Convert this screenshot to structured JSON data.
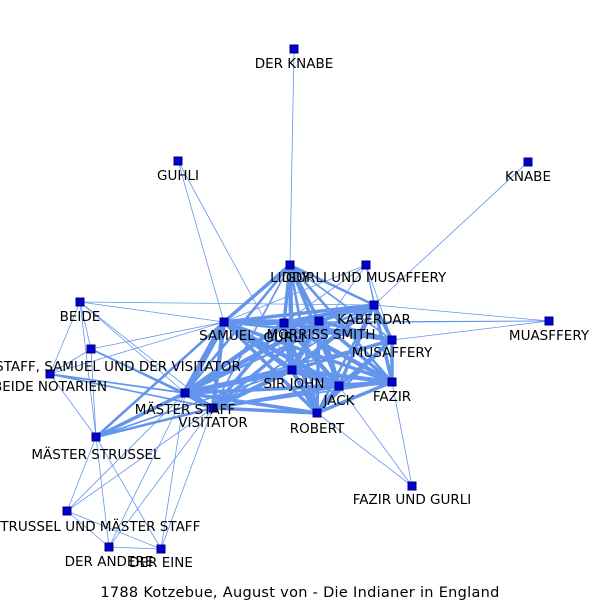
{
  "caption": "1788 Kotzebue, August von - Die Indianer in England",
  "colors": {
    "edge": "#6495ed",
    "node": "#0000cd",
    "node_border": "#000080",
    "text": "#000000"
  },
  "nodes": [
    {
      "id": "der_knabe",
      "label": "DER KNABE"
    },
    {
      "id": "guhli",
      "label": "GUHLI"
    },
    {
      "id": "knabe",
      "label": "KNABE"
    },
    {
      "id": "liddy",
      "label": "LIDDY"
    },
    {
      "id": "gurli_und_musaffery",
      "label": "GURLI UND MUSAFFERY"
    },
    {
      "id": "kaberdar",
      "label": "KABERDAR"
    },
    {
      "id": "muasffery",
      "label": "MUASFFERY"
    },
    {
      "id": "beide",
      "label": "BEIDE"
    },
    {
      "id": "samuel",
      "label": "SAMUEL"
    },
    {
      "id": "gurli",
      "label": "GURLI"
    },
    {
      "id": "morriss_smith",
      "label": "MORRISS SMITH"
    },
    {
      "id": "musaffery",
      "label": "MUSAFFERY"
    },
    {
      "id": "staff_samuel_visitator",
      "label": "STAFF, SAMUEL UND DER VISITATOR"
    },
    {
      "id": "beide_notarien",
      "label": "BEIDE NOTARIEN"
    },
    {
      "id": "sir_john",
      "label": "SIR JOHN"
    },
    {
      "id": "jack",
      "label": "JACK"
    },
    {
      "id": "fazir",
      "label": "FAZIR"
    },
    {
      "id": "maester_staff",
      "label": "MÄSTER STAFF"
    },
    {
      "id": "visitator",
      "label": "VISITATOR"
    },
    {
      "id": "robert",
      "label": "ROBERT"
    },
    {
      "id": "maester_strussel",
      "label": "MÄSTER STRUSSEL"
    },
    {
      "id": "fazir_und_gurli",
      "label": "FAZIR UND GURLI"
    },
    {
      "id": "strussel_und_staff",
      "label": "STRUSSEL UND MÄSTER STAFF"
    },
    {
      "id": "der_andere",
      "label": "DER ANDERE"
    },
    {
      "id": "der_eine",
      "label": "DER EINE"
    }
  ],
  "edges": [
    {
      "source": "der_knabe",
      "target": "liddy",
      "weight": 1
    },
    {
      "source": "knabe",
      "target": "kaberdar",
      "weight": 1
    },
    {
      "source": "guhli",
      "target": "samuel",
      "weight": 1
    },
    {
      "source": "guhli",
      "target": "sir_john",
      "weight": 1
    },
    {
      "source": "liddy",
      "target": "gurli",
      "weight": 4
    },
    {
      "source": "liddy",
      "target": "samuel",
      "weight": 4
    },
    {
      "source": "liddy",
      "target": "morriss_smith",
      "weight": 4
    },
    {
      "source": "liddy",
      "target": "sir_john",
      "weight": 5
    },
    {
      "source": "liddy",
      "target": "jack",
      "weight": 4
    },
    {
      "source": "liddy",
      "target": "robert",
      "weight": 3
    },
    {
      "source": "liddy",
      "target": "maester_staff",
      "weight": 3
    },
    {
      "source": "liddy",
      "target": "kaberdar",
      "weight": 3
    },
    {
      "source": "liddy",
      "target": "musaffery",
      "weight": 2
    },
    {
      "source": "liddy",
      "target": "fazir",
      "weight": 3
    },
    {
      "source": "liddy",
      "target": "visitator",
      "weight": 2
    },
    {
      "source": "gurli_und_musaffery",
      "target": "gurli",
      "weight": 1
    },
    {
      "source": "gurli_und_musaffery",
      "target": "kaberdar",
      "weight": 1
    },
    {
      "source": "gurli_und_musaffery",
      "target": "sir_john",
      "weight": 1
    },
    {
      "source": "gurli_und_musaffery",
      "target": "musaffery",
      "weight": 1
    },
    {
      "source": "gurli_und_musaffery",
      "target": "fazir",
      "weight": 1
    },
    {
      "source": "gurli_und_musaffery",
      "target": "samuel",
      "weight": 1
    },
    {
      "source": "kaberdar",
      "target": "gurli",
      "weight": 5
    },
    {
      "source": "kaberdar",
      "target": "samuel",
      "weight": 4
    },
    {
      "source": "kaberdar",
      "target": "morriss_smith",
      "weight": 4
    },
    {
      "source": "kaberdar",
      "target": "sir_john",
      "weight": 5
    },
    {
      "source": "kaberdar",
      "target": "jack",
      "weight": 4
    },
    {
      "source": "kaberdar",
      "target": "fazir",
      "weight": 4
    },
    {
      "source": "kaberdar",
      "target": "musaffery",
      "weight": 4
    },
    {
      "source": "kaberdar",
      "target": "robert",
      "weight": 3
    },
    {
      "source": "kaberdar",
      "target": "maester_staff",
      "weight": 3
    },
    {
      "source": "kaberdar",
      "target": "visitator",
      "weight": 2
    },
    {
      "source": "kaberdar",
      "target": "muasffery",
      "weight": 1
    },
    {
      "source": "muasffery",
      "target": "gurli",
      "weight": 1
    },
    {
      "source": "muasffery",
      "target": "musaffery",
      "weight": 1
    },
    {
      "source": "muasffery",
      "target": "samuel",
      "weight": 1
    },
    {
      "source": "beide",
      "target": "samuel",
      "weight": 1
    },
    {
      "source": "beide",
      "target": "maester_staff",
      "weight": 1
    },
    {
      "source": "beide",
      "target": "visitator",
      "weight": 1
    },
    {
      "source": "beide",
      "target": "maester_strussel",
      "weight": 1
    },
    {
      "source": "beide",
      "target": "beide_notarien",
      "weight": 1
    },
    {
      "source": "beide",
      "target": "staff_samuel_visitator",
      "weight": 1
    },
    {
      "source": "beide",
      "target": "kaberdar",
      "weight": 1
    },
    {
      "source": "samuel",
      "target": "gurli",
      "weight": 5
    },
    {
      "source": "samuel",
      "target": "morriss_smith",
      "weight": 5
    },
    {
      "source": "samuel",
      "target": "sir_john",
      "weight": 6
    },
    {
      "source": "samuel",
      "target": "jack",
      "weight": 5
    },
    {
      "source": "samuel",
      "target": "maester_staff",
      "weight": 7
    },
    {
      "source": "samuel",
      "target": "visitator",
      "weight": 5
    },
    {
      "source": "samuel",
      "target": "robert",
      "weight": 4
    },
    {
      "source": "samuel",
      "target": "fazir",
      "weight": 4
    },
    {
      "source": "samuel",
      "target": "musaffery",
      "weight": 3
    },
    {
      "source": "samuel",
      "target": "maester_strussel",
      "weight": 3
    },
    {
      "source": "samuel",
      "target": "staff_samuel_visitator",
      "weight": 1
    },
    {
      "source": "samuel",
      "target": "beide_notarien",
      "weight": 1
    },
    {
      "source": "gurli",
      "target": "morriss_smith",
      "weight": 5
    },
    {
      "source": "gurli",
      "target": "sir_john",
      "weight": 6
    },
    {
      "source": "gurli",
      "target": "jack",
      "weight": 5
    },
    {
      "source": "gurli",
      "target": "robert",
      "weight": 4
    },
    {
      "source": "gurli",
      "target": "fazir",
      "weight": 5
    },
    {
      "source": "gurli",
      "target": "musaffery",
      "weight": 5
    },
    {
      "source": "gurli",
      "target": "maester_staff",
      "weight": 5
    },
    {
      "source": "gurli",
      "target": "visitator",
      "weight": 4
    },
    {
      "source": "morriss_smith",
      "target": "sir_john",
      "weight": 6
    },
    {
      "source": "morriss_smith",
      "target": "jack",
      "weight": 5
    },
    {
      "source": "morriss_smith",
      "target": "robert",
      "weight": 4
    },
    {
      "source": "morriss_smith",
      "target": "fazir",
      "weight": 4
    },
    {
      "source": "morriss_smith",
      "target": "musaffery",
      "weight": 4
    },
    {
      "source": "morriss_smith",
      "target": "maester_staff",
      "weight": 5
    },
    {
      "source": "morriss_smith",
      "target": "visitator",
      "weight": 4
    },
    {
      "source": "musaffery",
      "target": "sir_john",
      "weight": 4
    },
    {
      "source": "musaffery",
      "target": "jack",
      "weight": 4
    },
    {
      "source": "musaffery",
      "target": "fazir",
      "weight": 4
    },
    {
      "source": "musaffery",
      "target": "robert",
      "weight": 3
    },
    {
      "source": "musaffery",
      "target": "maester_staff",
      "weight": 2
    },
    {
      "source": "sir_john",
      "target": "jack",
      "weight": 6
    },
    {
      "source": "sir_john",
      "target": "robert",
      "weight": 5
    },
    {
      "source": "sir_john",
      "target": "fazir",
      "weight": 5
    },
    {
      "source": "sir_john",
      "target": "maester_staff",
      "weight": 6
    },
    {
      "source": "sir_john",
      "target": "visitator",
      "weight": 5
    },
    {
      "source": "sir_john",
      "target": "maester_strussel",
      "weight": 2
    },
    {
      "source": "jack",
      "target": "robert",
      "weight": 5
    },
    {
      "source": "jack",
      "target": "fazir",
      "weight": 5
    },
    {
      "source": "jack",
      "target": "maester_staff",
      "weight": 4
    },
    {
      "source": "jack",
      "target": "visitator",
      "weight": 4
    },
    {
      "source": "jack",
      "target": "fazir_und_gurli",
      "weight": 1
    },
    {
      "source": "fazir",
      "target": "robert",
      "weight": 4
    },
    {
      "source": "fazir",
      "target": "maester_staff",
      "weight": 3
    },
    {
      "source": "fazir",
      "target": "visitator",
      "weight": 2
    },
    {
      "source": "fazir",
      "target": "fazir_und_gurli",
      "weight": 1
    },
    {
      "source": "robert",
      "target": "maester_staff",
      "weight": 4
    },
    {
      "source": "robert",
      "target": "visitator",
      "weight": 4
    },
    {
      "source": "robert",
      "target": "fazir_und_gurli",
      "weight": 1
    },
    {
      "source": "maester_staff",
      "target": "visitator",
      "weight": 6
    },
    {
      "source": "maester_staff",
      "target": "maester_strussel",
      "weight": 4
    },
    {
      "source": "maester_staff",
      "target": "staff_samuel_visitator",
      "weight": 2
    },
    {
      "source": "maester_staff",
      "target": "beide_notarien",
      "weight": 2
    },
    {
      "source": "maester_staff",
      "target": "strussel_und_staff",
      "weight": 1
    },
    {
      "source": "maester_staff",
      "target": "der_andere",
      "weight": 1
    },
    {
      "source": "maester_staff",
      "target": "der_eine",
      "weight": 1
    },
    {
      "source": "visitator",
      "target": "maester_strussel",
      "weight": 3
    },
    {
      "source": "visitator",
      "target": "staff_samuel_visitator",
      "weight": 2
    },
    {
      "source": "visitator",
      "target": "beide_notarien",
      "weight": 2
    },
    {
      "source": "visitator",
      "target": "strussel_und_staff",
      "weight": 1
    },
    {
      "source": "visitator",
      "target": "der_andere",
      "weight": 1
    },
    {
      "source": "visitator",
      "target": "der_eine",
      "weight": 1
    },
    {
      "source": "staff_samuel_visitator",
      "target": "beide_notarien",
      "weight": 1
    },
    {
      "source": "staff_samuel_visitator",
      "target": "maester_strussel",
      "weight": 1
    },
    {
      "source": "beide_notarien",
      "target": "maester_strussel",
      "weight": 1
    },
    {
      "source": "maester_strussel",
      "target": "strussel_und_staff",
      "weight": 1
    },
    {
      "source": "maester_strussel",
      "target": "der_andere",
      "weight": 1
    },
    {
      "source": "maester_strussel",
      "target": "der_eine",
      "weight": 1
    },
    {
      "source": "strussel_und_staff",
      "target": "der_andere",
      "weight": 1
    },
    {
      "source": "strussel_und_staff",
      "target": "der_eine",
      "weight": 1
    },
    {
      "source": "der_andere",
      "target": "der_eine",
      "weight": 1
    }
  ]
}
